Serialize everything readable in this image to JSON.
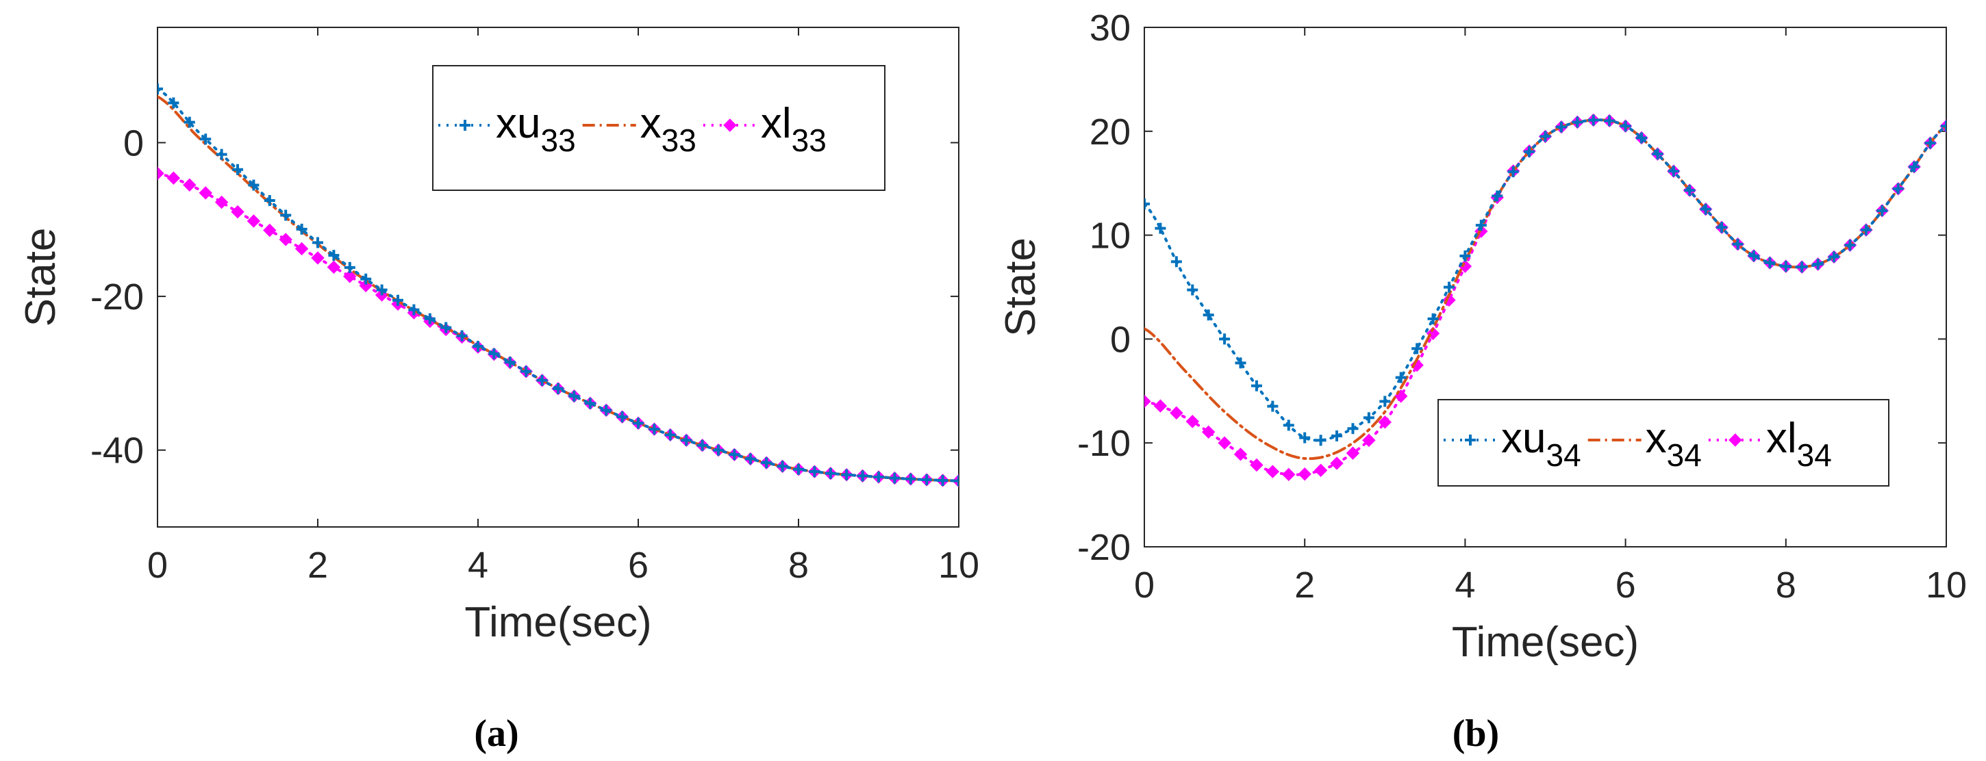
{
  "colors": {
    "upper": "#0072BD",
    "state": "#D95319",
    "lower": "#FF00FF",
    "axis": "#262626",
    "legend_border": "#262626"
  },
  "chart_data": [
    {
      "id": "a",
      "type": "line",
      "caption": "(a)",
      "xlabel": "Time(sec)",
      "ylabel": "State",
      "xlim": [
        0,
        10
      ],
      "ylim": [
        -50,
        15
      ],
      "xticks": [
        0,
        2,
        4,
        6,
        8,
        10
      ],
      "yticks": [
        -40,
        -20,
        0
      ],
      "xtick_labels": [
        "0",
        "2",
        "4",
        "6",
        "8",
        "10"
      ],
      "ytick_labels": [
        "-40",
        "-20",
        "0"
      ],
      "grid": false,
      "legend_placement": "top-right",
      "legend": [
        {
          "key": "upper",
          "base": "xu",
          "sub": "33",
          "marker": "plus"
        },
        {
          "key": "state",
          "base": "x",
          "sub": "33",
          "marker": "none"
        },
        {
          "key": "lower",
          "base": "xl",
          "sub": "33",
          "marker": "diamond"
        }
      ],
      "series": [
        {
          "key": "upper",
          "name": "xu33",
          "dash": "dotted",
          "marker": "plus",
          "x": [
            0,
            0.5,
            1,
            1.5,
            2,
            2.5,
            3,
            3.5,
            4,
            5,
            6,
            7,
            8,
            9,
            10
          ],
          "y": [
            7,
            1.5,
            -3.5,
            -8.5,
            -13,
            -17,
            -20.5,
            -23.5,
            -26.5,
            -32,
            -36.5,
            -40,
            -42.5,
            -43.5,
            -44
          ]
        },
        {
          "key": "state",
          "name": "x33",
          "dash": "dashdot",
          "marker": "none",
          "x": [
            0,
            0.5,
            1,
            1.5,
            2,
            2.5,
            3,
            3.5,
            4,
            5,
            6,
            7,
            8,
            9,
            10
          ],
          "y": [
            6,
            0.8,
            -4,
            -8.8,
            -13.2,
            -17.2,
            -20.6,
            -23.6,
            -26.5,
            -32,
            -36.5,
            -40,
            -42.5,
            -43.5,
            -44
          ]
        },
        {
          "key": "lower",
          "name": "xl33",
          "dash": "dotted",
          "marker": "diamond",
          "x": [
            0,
            0.5,
            1,
            1.5,
            2,
            2.5,
            3,
            3.5,
            4,
            5,
            6,
            7,
            8,
            9,
            10
          ],
          "y": [
            -4,
            -6,
            -9,
            -12,
            -15,
            -18,
            -21,
            -23.8,
            -26.6,
            -32,
            -36.5,
            -40,
            -42.5,
            -43.5,
            -44
          ]
        }
      ]
    },
    {
      "id": "b",
      "type": "line",
      "caption": "(b)",
      "xlabel": "Time(sec)",
      "ylabel": "State",
      "xlim": [
        0,
        10
      ],
      "ylim": [
        -20,
        30
      ],
      "xticks": [
        0,
        2,
        4,
        6,
        8,
        10
      ],
      "yticks": [
        -20,
        -10,
        0,
        10,
        20,
        30
      ],
      "xtick_labels": [
        "0",
        "2",
        "4",
        "6",
        "8",
        "10"
      ],
      "ytick_labels": [
        "-20",
        "-10",
        "0",
        "10",
        "20",
        "30"
      ],
      "grid": false,
      "legend_placement": "bottom-right",
      "legend": [
        {
          "key": "upper",
          "base": "xu",
          "sub": "34",
          "marker": "plus"
        },
        {
          "key": "state",
          "base": "x",
          "sub": "34",
          "marker": "none"
        },
        {
          "key": "lower",
          "base": "xl",
          "sub": "34",
          "marker": "diamond"
        }
      ],
      "series": [
        {
          "key": "upper",
          "name": "xu34",
          "dash": "dotted",
          "marker": "plus",
          "x": [
            0,
            0.5,
            1,
            1.5,
            2,
            2.5,
            3,
            3.5,
            4,
            4.5,
            5,
            5.5,
            6,
            6.5,
            7,
            7.5,
            8,
            8.5,
            9,
            9.5,
            10
          ],
          "y": [
            13,
            6,
            0,
            -5.5,
            -9.5,
            -9,
            -6,
            0.5,
            8,
            15,
            19.5,
            21,
            20.5,
            17,
            12.5,
            8.5,
            7,
            7.5,
            10.5,
            15.5,
            20.5
          ]
        },
        {
          "key": "state",
          "name": "x34",
          "dash": "dashdot",
          "marker": "none",
          "x": [
            0,
            0.5,
            1,
            1.5,
            2,
            2.5,
            3,
            3.5,
            4,
            4.5,
            5,
            5.5,
            6,
            6.5,
            7,
            7.5,
            8,
            8.5,
            9,
            9.5,
            10
          ],
          "y": [
            1,
            -3,
            -7,
            -10,
            -11.5,
            -10.5,
            -7,
            -0.5,
            7.5,
            15,
            19.5,
            21,
            20.5,
            17,
            12.5,
            8.5,
            7,
            7.5,
            10.5,
            15.5,
            20.5
          ]
        },
        {
          "key": "lower",
          "name": "xl34",
          "dash": "dotted",
          "marker": "diamond",
          "x": [
            0,
            0.5,
            1,
            1.5,
            2,
            2.5,
            3,
            3.5,
            4,
            4.5,
            5,
            5.5,
            6,
            6.5,
            7,
            7.5,
            8,
            8.5,
            9,
            9.5,
            10
          ],
          "y": [
            -6,
            -7.5,
            -10,
            -12.5,
            -13,
            -11.5,
            -8,
            -1,
            7,
            15,
            19.5,
            21,
            20.5,
            17,
            12.5,
            8.5,
            7,
            7.5,
            10.5,
            15.5,
            20.5
          ]
        }
      ]
    }
  ]
}
